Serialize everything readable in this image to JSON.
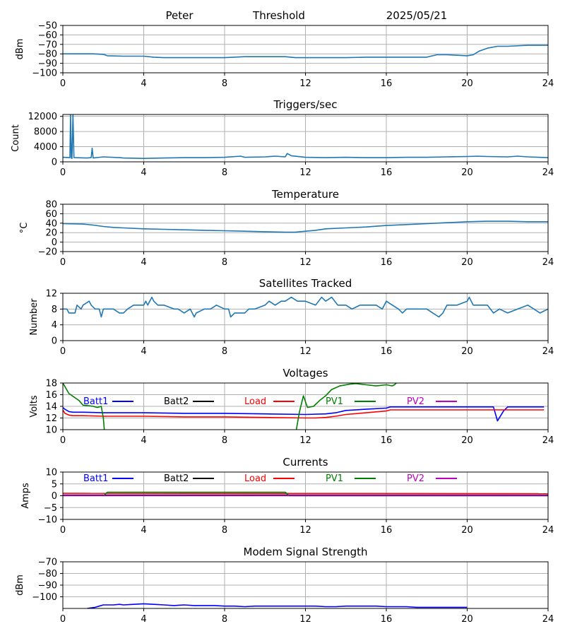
{
  "header": {
    "site": "Peter",
    "mode": "Threshold",
    "date": "2025/05/21"
  },
  "chart_data": [
    {
      "id": "rssi",
      "type": "line",
      "title": "",
      "ylabel": "dBm",
      "xlim": [
        0,
        24
      ],
      "ylim": [
        -100,
        -50
      ],
      "xticks": [
        0,
        4,
        8,
        12,
        16,
        20,
        24
      ],
      "yticks": [
        -100,
        -90,
        -80,
        -70,
        -60,
        -50
      ],
      "grid": true,
      "series": [
        {
          "color": "#1f77b4",
          "x": [
            0,
            0.5,
            1,
            1.5,
            2,
            2.2,
            3,
            4,
            4.5,
            5,
            6,
            7,
            8,
            9,
            10,
            11,
            11.5,
            12,
            13,
            14,
            15,
            16,
            17,
            18,
            18.5,
            19,
            19.5,
            20,
            20.3,
            20.6,
            21,
            21.5,
            22,
            23,
            24
          ],
          "y": [
            -80,
            -80,
            -80,
            -80,
            -80.5,
            -82,
            -82.5,
            -82.5,
            -83.5,
            -84,
            -84,
            -84,
            -84,
            -83,
            -83,
            -83,
            -84,
            -84,
            -84,
            -84,
            -83.5,
            -83.5,
            -83.5,
            -83.5,
            -81,
            -81,
            -81.5,
            -82,
            -81,
            -77,
            -74,
            -72,
            -72,
            -71,
            -71
          ]
        }
      ]
    },
    {
      "id": "triggers",
      "type": "line",
      "title": "Triggers/sec",
      "ylabel": "Count",
      "xlim": [
        0,
        24
      ],
      "ylim": [
        0,
        12500
      ],
      "xticks": [
        0,
        4,
        8,
        12,
        16,
        20,
        24
      ],
      "yticks": [
        0,
        4000,
        8000,
        12000
      ],
      "grid": true,
      "series": [
        {
          "color": "#1f77b4",
          "x": [
            0,
            0.35,
            0.38,
            0.42,
            0.45,
            0.5,
            0.55,
            1.2,
            1.4,
            1.45,
            1.5,
            2,
            2.8,
            3,
            4,
            5,
            6,
            7,
            8,
            8.8,
            9,
            10,
            10.5,
            11,
            11.1,
            11.3,
            12,
            13,
            14,
            15,
            16,
            17,
            18,
            19,
            20,
            20.5,
            21,
            22,
            22.5,
            23,
            24
          ],
          "y": [
            1200,
            1100,
            12500,
            1000,
            900,
            12500,
            1100,
            1000,
            1100,
            3600,
            1000,
            1300,
            1100,
            1000,
            900,
            1000,
            1100,
            1100,
            1200,
            1500,
            1200,
            1300,
            1500,
            1300,
            2200,
            1600,
            1200,
            1100,
            1200,
            1100,
            1100,
            1200,
            1200,
            1300,
            1400,
            1500,
            1400,
            1300,
            1500,
            1300,
            1100
          ]
        }
      ]
    },
    {
      "id": "temperature",
      "type": "line",
      "title": "Temperature",
      "ylabel": "°C",
      "xlim": [
        0,
        24
      ],
      "ylim": [
        -20,
        80
      ],
      "xticks": [
        0,
        4,
        8,
        12,
        16,
        20,
        24
      ],
      "yticks": [
        -20,
        0,
        20,
        40,
        60,
        80
      ],
      "grid": true,
      "series": [
        {
          "color": "#1f77b4",
          "x": [
            0,
            1,
            1.5,
            2,
            2.5,
            3,
            4,
            5,
            6,
            7,
            8,
            9,
            10,
            11,
            11.5,
            12,
            12.5,
            13,
            14,
            15,
            16,
            17,
            18,
            19,
            20,
            21,
            22,
            23,
            24
          ],
          "y": [
            39,
            38,
            36,
            33,
            31,
            30,
            28,
            27,
            26,
            25,
            24,
            23,
            22,
            21,
            21,
            23,
            25,
            28,
            30,
            32,
            35,
            37,
            39,
            41,
            43,
            44,
            44,
            43,
            43
          ]
        }
      ]
    },
    {
      "id": "satellites",
      "type": "line",
      "title": "Satellites Tracked",
      "ylabel": "Number",
      "xlim": [
        0,
        24
      ],
      "ylim": [
        0,
        12
      ],
      "xticks": [
        0,
        4,
        8,
        12,
        16,
        20,
        24
      ],
      "yticks": [
        0,
        4,
        8,
        12
      ],
      "grid": true,
      "series": [
        {
          "color": "#1f77b4",
          "x": [
            0,
            0.2,
            0.3,
            0.6,
            0.7,
            0.9,
            1.0,
            1.3,
            1.4,
            1.6,
            1.8,
            1.9,
            2.0,
            2.5,
            2.8,
            3.0,
            3.2,
            3.5,
            4.0,
            4.1,
            4.2,
            4.4,
            4.5,
            4.7,
            5.0,
            5.5,
            5.7,
            6.0,
            6.3,
            6.5,
            6.6,
            7.0,
            7.3,
            7.6,
            8.0,
            8.2,
            8.3,
            8.5,
            9.0,
            9.2,
            9.5,
            10.0,
            10.2,
            10.5,
            10.8,
            11.0,
            11.3,
            11.6,
            12.0,
            12.5,
            12.8,
            13.0,
            13.3,
            13.6,
            14.0,
            14.3,
            14.7,
            15.0,
            15.5,
            15.8,
            16.0,
            16.3,
            16.6,
            16.8,
            17.0,
            17.5,
            18.0,
            18.3,
            18.6,
            18.8,
            19.0,
            19.5,
            20.0,
            20.1,
            20.3,
            21.0,
            21.3,
            21.6,
            22.0,
            22.5,
            23.0,
            23.3,
            23.6,
            24
          ],
          "y": [
            8,
            8,
            7,
            7,
            9,
            8,
            9,
            10,
            9,
            8,
            8,
            6,
            8,
            8,
            7,
            7,
            8,
            9,
            9,
            10,
            9,
            11,
            10,
            9,
            9,
            8,
            8,
            7,
            8,
            6,
            7,
            8,
            8,
            9,
            8,
            8,
            6,
            7,
            7,
            8,
            8,
            9,
            10,
            9,
            10,
            10,
            11,
            10,
            10,
            9,
            11,
            10,
            11,
            9,
            9,
            8,
            9,
            9,
            9,
            8,
            10,
            9,
            8,
            7,
            8,
            8,
            8,
            7,
            6,
            7,
            9,
            9,
            10,
            11,
            9,
            9,
            7,
            8,
            7,
            8,
            9,
            8,
            7,
            8
          ]
        }
      ]
    },
    {
      "id": "voltages",
      "type": "line",
      "title": "Voltages",
      "ylabel": "Volts",
      "xlim": [
        0,
        24
      ],
      "ylim": [
        10,
        18
      ],
      "xticks": [
        0,
        4,
        8,
        12,
        16,
        20,
        24
      ],
      "yticks": [
        10,
        12,
        14,
        16,
        18
      ],
      "grid": true,
      "legend": [
        "Batt1",
        "Batt2",
        "Load",
        "PV1",
        "PV2"
      ],
      "series": [
        {
          "name": "Batt1",
          "color": "#0000ff",
          "x": [
            0,
            0.1,
            0.3,
            0.5,
            1,
            2,
            4,
            6,
            8,
            10,
            12,
            13,
            13.5,
            14,
            15,
            16,
            16.2,
            17,
            18,
            20,
            21.3,
            21.5,
            21.8,
            22,
            23,
            23.8
          ],
          "y": [
            13.8,
            13.5,
            13.1,
            13.0,
            13.0,
            12.9,
            12.9,
            12.8,
            12.8,
            12.7,
            12.6,
            12.7,
            12.9,
            13.3,
            13.5,
            13.7,
            13.9,
            13.9,
            13.9,
            13.9,
            13.9,
            11.5,
            13.2,
            13.9,
            13.9,
            13.9
          ]
        },
        {
          "name": "Batt2",
          "color": "#000000",
          "x": [],
          "y": []
        },
        {
          "name": "Load",
          "color": "#ff0000",
          "x": [
            0,
            0.1,
            0.3,
            0.5,
            1,
            2,
            4,
            6,
            8,
            10,
            12,
            12.5,
            13,
            13.5,
            14,
            15,
            16,
            16.2,
            17,
            18,
            20,
            22,
            23,
            23.8
          ],
          "y": [
            13.4,
            12.8,
            12.5,
            12.4,
            12.4,
            12.3,
            12.3,
            12.2,
            12.2,
            12.1,
            12.0,
            12.0,
            12.1,
            12.3,
            12.6,
            12.9,
            13.2,
            13.4,
            13.4,
            13.4,
            13.4,
            13.4,
            13.4,
            13.4
          ]
        },
        {
          "name": "PV1",
          "color": "#008000",
          "x": [
            0,
            0.3,
            0.8,
            1.0,
            1.3,
            1.5,
            1.7,
            1.9,
            2.0,
            2.05
          ],
          "y": [
            18,
            16.2,
            15.0,
            14.2,
            14.1,
            14.0,
            13.8,
            14.0,
            12.0,
            10
          ],
          "x2": [
            11.55,
            11.7,
            11.9,
            12.1,
            12.4,
            12.7,
            13.0,
            13.3,
            13.7,
            14.2,
            14.5,
            15.0,
            15.5,
            16.0,
            16.3,
            16.4,
            16.5
          ],
          "y2": [
            10,
            13.0,
            15.8,
            13.8,
            14.0,
            15.0,
            15.8,
            16.9,
            17.5,
            17.8,
            17.9,
            17.7,
            17.5,
            17.7,
            17.5,
            17.7,
            18
          ]
        },
        {
          "name": "PV2",
          "color": "#bf00bf",
          "x": [],
          "y": []
        }
      ]
    },
    {
      "id": "currents",
      "type": "line",
      "title": "Currents",
      "ylabel": "Amps",
      "xlim": [
        0,
        24
      ],
      "ylim": [
        -10,
        10
      ],
      "xticks": [
        0,
        4,
        8,
        12,
        16,
        20,
        24
      ],
      "yticks": [
        -10,
        -5,
        0,
        5,
        10
      ],
      "grid": true,
      "legend": [
        "Batt1",
        "Batt2",
        "Load",
        "PV1",
        "PV2"
      ],
      "series": [
        {
          "name": "Batt1",
          "color": "#0000ff",
          "x": [
            0,
            24
          ],
          "y": [
            0.3,
            0.3
          ]
        },
        {
          "name": "Batt2",
          "color": "#000000",
          "x": [
            0,
            24
          ],
          "y": [
            0.2,
            0.2
          ]
        },
        {
          "name": "Load",
          "color": "#ff0000",
          "x": [
            0,
            24
          ],
          "y": [
            1.0,
            0.9
          ]
        },
        {
          "name": "PV1",
          "color": "#008000",
          "x": [
            2.0,
            2.2,
            4,
            8,
            11.0,
            11.2,
            24
          ],
          "y": [
            0,
            1.5,
            1.5,
            1.5,
            1.5,
            0,
            0
          ]
        },
        {
          "name": "PV2",
          "color": "#bf00bf",
          "x": [
            0,
            24
          ],
          "y": [
            0,
            0
          ]
        }
      ]
    },
    {
      "id": "modem",
      "type": "line",
      "title": "Modem Signal Strength",
      "ylabel": "dBm",
      "xlim": [
        0,
        24
      ],
      "ylim": [
        -110,
        -70
      ],
      "xticks": [
        0,
        4,
        8,
        12,
        16,
        20,
        24
      ],
      "yticks": [
        -100,
        -90,
        -80,
        -70
      ],
      "grid": true,
      "series": [
        {
          "name": "Modem",
          "color": "#0000ff",
          "x": [
            1.2,
            1.6,
            1.8,
            2.0,
            2.5,
            2.8,
            3.0,
            3.5,
            4.0,
            4.5,
            5.0,
            5.5,
            6.0,
            6.5,
            7.0,
            7.5,
            8.0,
            8.5,
            9.0,
            9.5,
            10,
            11,
            12,
            12.5,
            13,
            13.5,
            14,
            15,
            15.5,
            16,
            17,
            17.5,
            19.5,
            20
          ],
          "y": [
            -110,
            -109,
            -108,
            -107,
            -107,
            -106.5,
            -107,
            -106.5,
            -106,
            -106.5,
            -107,
            -107.5,
            -107,
            -107.5,
            -107.5,
            -107.5,
            -108,
            -108,
            -108.5,
            -108,
            -108,
            -108,
            -108,
            -108,
            -108.5,
            -108.5,
            -108,
            -108,
            -108,
            -108.5,
            -108.5,
            -109,
            -109,
            -109
          ]
        }
      ]
    }
  ]
}
